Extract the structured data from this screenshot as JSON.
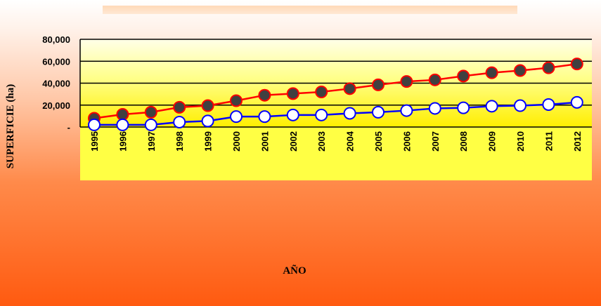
{
  "chart_data": {
    "type": "line",
    "xlabel": "AÑO",
    "ylabel": "SUPERFICIE (ha)",
    "categories": [
      "1995",
      "1996",
      "1997",
      "1998",
      "1999",
      "2000",
      "2001",
      "2002",
      "2003",
      "2004",
      "2005",
      "2006",
      "2007",
      "2008",
      "2009",
      "2010",
      "2011",
      "2012"
    ],
    "ylim": [
      0,
      80000
    ],
    "yticks": [
      {
        "value": 0,
        "label": "-"
      },
      {
        "value": 20000,
        "label": "20,000"
      },
      {
        "value": 40000,
        "label": "40,000"
      },
      {
        "value": 60000,
        "label": "60,000"
      },
      {
        "value": 80000,
        "label": "80,000"
      }
    ],
    "grid": true,
    "legend": "none",
    "series": [
      {
        "line_color": "#ff0000",
        "marker_fill": "#404040",
        "marker_stroke": "#ff0000",
        "values": [
          8000,
          11500,
          13500,
          18000,
          19500,
          24000,
          29000,
          30500,
          32000,
          35000,
          38500,
          41500,
          43000,
          46500,
          49500,
          51500,
          54000,
          57500
        ]
      },
      {
        "line_color": "#0000ff",
        "marker_fill": "#ffffff",
        "marker_stroke": "#0000ff",
        "values": [
          2000,
          2000,
          2000,
          4500,
          5500,
          9500,
          9500,
          11000,
          11000,
          12500,
          13500,
          15000,
          17000,
          17500,
          19000,
          19500,
          20500,
          22500
        ]
      }
    ]
  }
}
